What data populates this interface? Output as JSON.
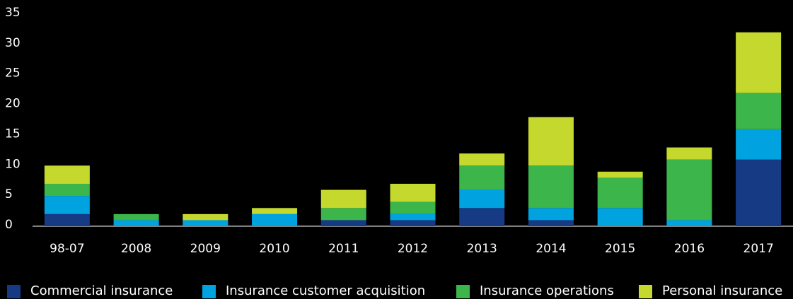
{
  "chart_data": {
    "type": "stacked_bar",
    "categories": [
      "98-07",
      "2008",
      "2009",
      "2010",
      "2011",
      "2012",
      "2013",
      "2014",
      "2015",
      "2016",
      "2017"
    ],
    "series": [
      {
        "name": "Commercial insurance",
        "color": "#173a85",
        "values": [
          2,
          0,
          0,
          0,
          1,
          1,
          3,
          1,
          0,
          0,
          11
        ]
      },
      {
        "name": "Insurance customer acquisition",
        "color": "#00a3e0",
        "values": [
          3,
          1,
          1,
          2,
          0,
          1,
          3,
          2,
          3,
          1,
          5
        ]
      },
      {
        "name": "Insurance operations",
        "color": "#3cb54a",
        "values": [
          2,
          1,
          0,
          0,
          2,
          2,
          4,
          7,
          5,
          10,
          6
        ]
      },
      {
        "name": "Personal insurance",
        "color": "#c5d82e",
        "values": [
          3,
          0,
          1,
          1,
          3,
          3,
          2,
          8,
          1,
          2,
          10
        ]
      }
    ],
    "ylim": [
      0,
      35
    ],
    "yticks": [
      0,
      5,
      10,
      15,
      20,
      25,
      30,
      35
    ]
  }
}
